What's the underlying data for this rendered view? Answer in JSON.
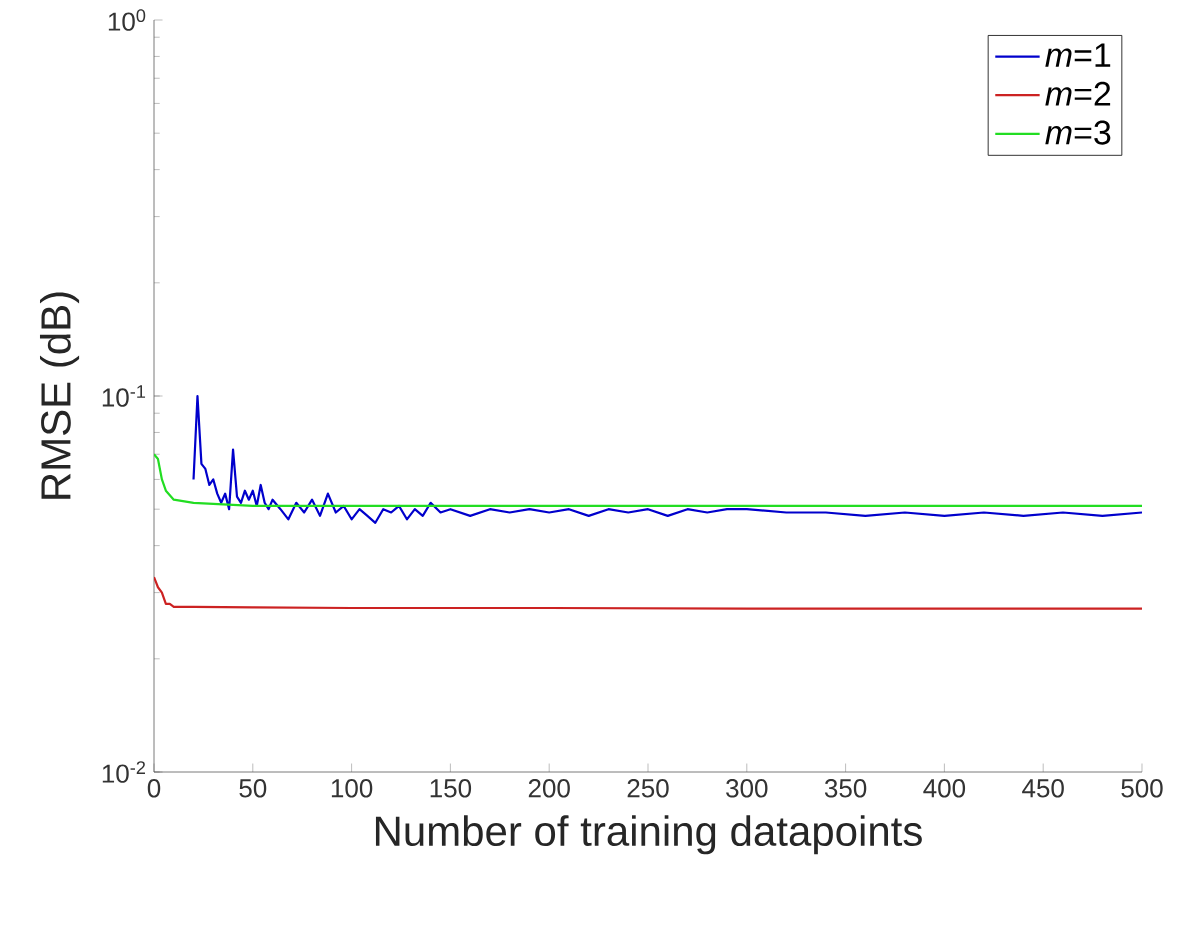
{
  "chart_data": {
    "type": "line",
    "xlabel": "Number of training datapoints",
    "ylabel": "RMSE (dB)",
    "log": "y",
    "legend": "top right",
    "xlim": [
      0,
      500
    ],
    "xticks": [
      0,
      50,
      100,
      150,
      200,
      250,
      300,
      350,
      400,
      450,
      500
    ],
    "ylim": [
      0.01,
      1
    ],
    "yticks": [
      {
        "value": 0.01,
        "label": "10$^{-2}$"
      },
      {
        "value": 0.1,
        "label": "10$^{-1}$"
      },
      {
        "value": 1,
        "label": "10$^{0}$"
      }
    ],
    "series": [
      {
        "name": "*m*=1",
        "color": "#0000cc",
        "x": [
          20,
          22,
          24,
          26,
          28,
          30,
          32,
          34,
          36,
          38,
          40,
          42,
          44,
          46,
          48,
          50,
          52,
          54,
          56,
          58,
          60,
          64,
          68,
          72,
          76,
          80,
          84,
          88,
          92,
          96,
          100,
          104,
          108,
          112,
          116,
          120,
          124,
          128,
          132,
          136,
          140,
          145,
          150,
          160,
          170,
          180,
          190,
          200,
          210,
          220,
          230,
          240,
          250,
          260,
          270,
          280,
          290,
          300,
          320,
          340,
          360,
          380,
          400,
          420,
          440,
          460,
          480,
          500
        ],
        "values": [
          0.06,
          0.1,
          0.066,
          0.064,
          0.058,
          0.06,
          0.055,
          0.052,
          0.055,
          0.05,
          0.072,
          0.054,
          0.052,
          0.056,
          0.053,
          0.056,
          0.051,
          0.058,
          0.052,
          0.05,
          0.053,
          0.05,
          0.047,
          0.052,
          0.049,
          0.053,
          0.048,
          0.055,
          0.049,
          0.051,
          0.047,
          0.05,
          0.048,
          0.046,
          0.05,
          0.049,
          0.051,
          0.047,
          0.05,
          0.048,
          0.052,
          0.049,
          0.05,
          0.048,
          0.05,
          0.049,
          0.05,
          0.049,
          0.05,
          0.048,
          0.05,
          0.049,
          0.05,
          0.048,
          0.05,
          0.049,
          0.05,
          0.05,
          0.049,
          0.049,
          0.048,
          0.049,
          0.048,
          0.049,
          0.048,
          0.049,
          0.048,
          0.049
        ]
      },
      {
        "name": "*m*=2",
        "color": "#cc2222",
        "x": [
          0,
          2,
          4,
          6,
          8,
          10,
          20,
          50,
          100,
          200,
          300,
          400,
          500
        ],
        "values": [
          0.033,
          0.031,
          0.03,
          0.028,
          0.028,
          0.0275,
          0.0275,
          0.0274,
          0.0273,
          0.0273,
          0.0272,
          0.0272,
          0.0272
        ]
      },
      {
        "name": "*m*=3",
        "color": "#22dd22",
        "x": [
          0,
          2,
          4,
          6,
          10,
          20,
          50,
          100,
          200,
          300,
          400,
          500
        ],
        "values": [
          0.07,
          0.068,
          0.06,
          0.056,
          0.053,
          0.052,
          0.051,
          0.051,
          0.051,
          0.051,
          0.051,
          0.051
        ]
      }
    ]
  }
}
